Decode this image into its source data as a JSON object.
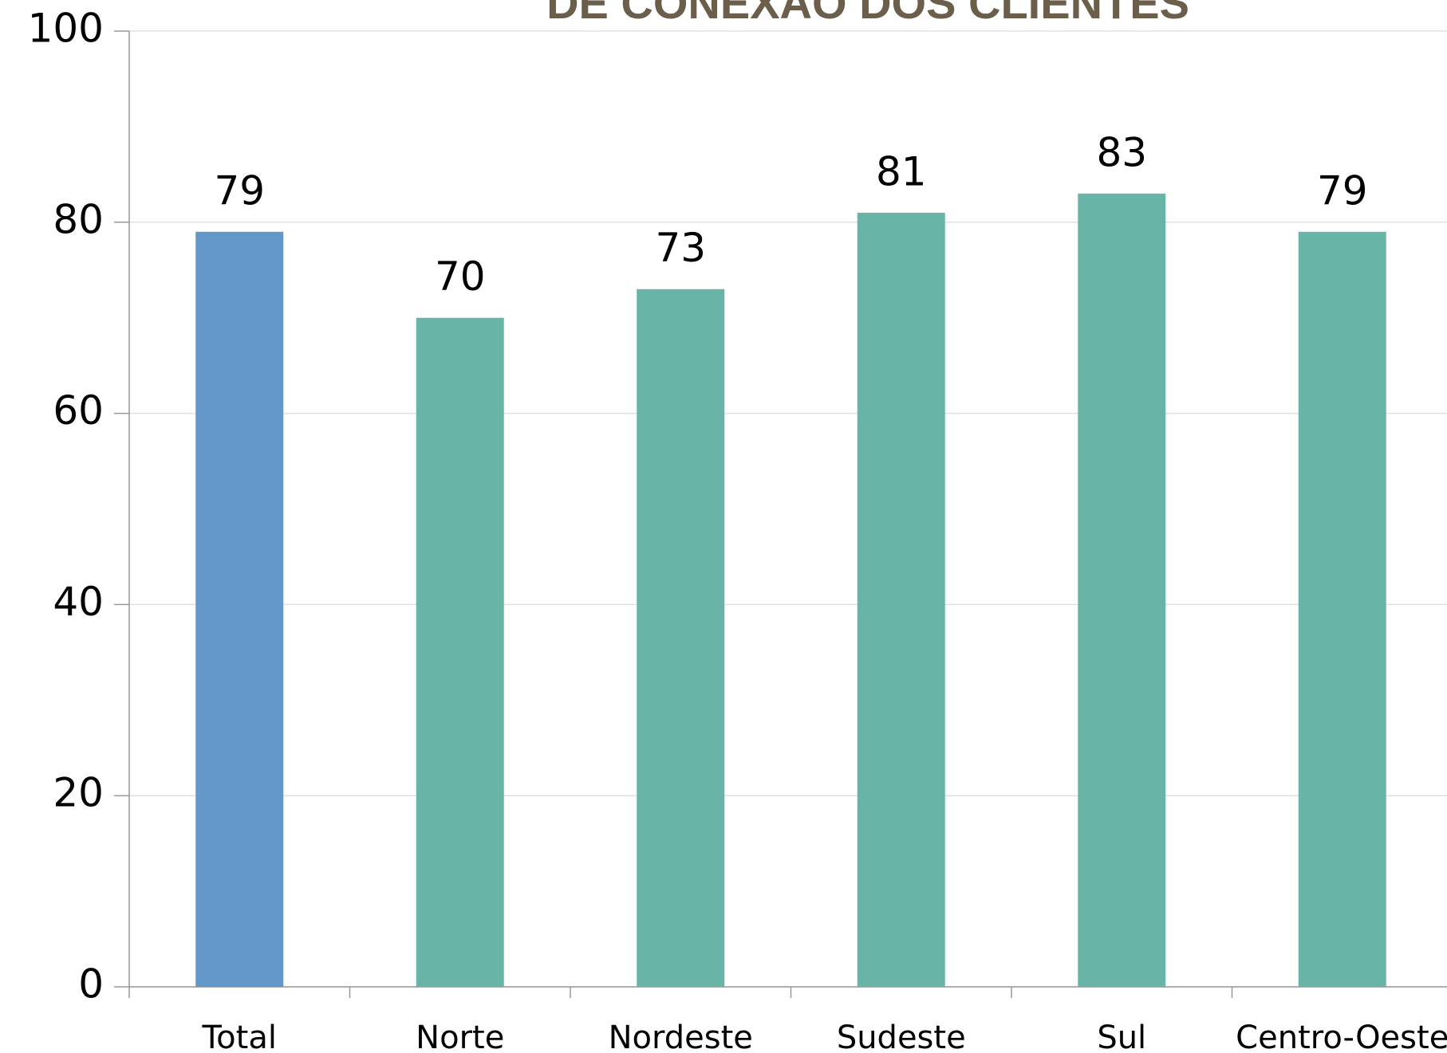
{
  "chart_data": {
    "type": "bar",
    "title": "DE CONEXÃO DOS CLIENTES",
    "categories": [
      "Total",
      "Norte",
      "Nordeste",
      "Sudeste",
      "Sul",
      "Centro-Oeste"
    ],
    "values": [
      79,
      70,
      73,
      81,
      83,
      79
    ],
    "colors": [
      "#6396c9",
      "#68b5a8",
      "#68b5a8",
      "#68b5a8",
      "#68b5a8",
      "#68b5a8"
    ],
    "ylim": [
      0,
      100
    ],
    "yticks": [
      0,
      20,
      40,
      60,
      80,
      100
    ],
    "grid": true
  }
}
